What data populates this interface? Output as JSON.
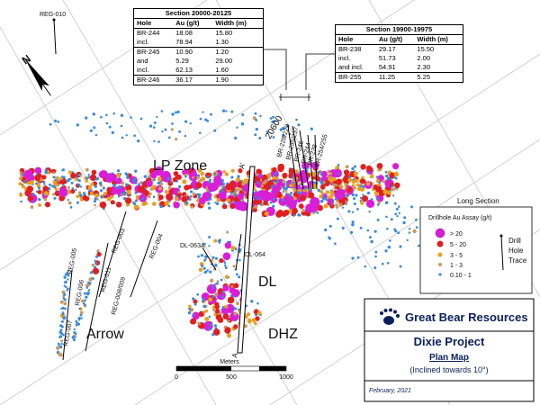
{
  "tables": [
    {
      "title": "Section 20000-20125",
      "columns": [
        "Hole",
        "Au (g/t)",
        "Width (m)"
      ],
      "rows": [
        [
          "BR-244",
          "18.08",
          "15.80"
        ],
        [
          "incl.",
          "78.94",
          "1.30"
        ],
        [
          "BR-245",
          "10.90",
          "1.20"
        ],
        [
          "and",
          "5.29",
          "29.00"
        ],
        [
          "incl.",
          "62.13",
          "1.60"
        ],
        [
          "BR-246",
          "36.17",
          "1.90"
        ]
      ]
    },
    {
      "title": "Section 19900-19975",
      "columns": [
        "Hole",
        "Au (g/t)",
        "Width (m)"
      ],
      "rows": [
        [
          "BR-238",
          "29.17",
          "15.50"
        ],
        [
          "incl.",
          "51.73",
          "2.00"
        ],
        [
          "and incl.",
          "54.91",
          "2.30"
        ],
        [
          "BR-255",
          "11.25",
          "5.25"
        ]
      ]
    }
  ],
  "map_labels": [
    "REG-010",
    "N",
    "LP Zone",
    "Long Section",
    "20600",
    "BR-228/229",
    "BR-235/237",
    "BR-246",
    "BR-244",
    "BR-238",
    "BR-254/255",
    "A'",
    "A",
    "REG-003",
    "REG-004",
    "DL-063A",
    "DL-064",
    "REG-011",
    "REG-008/009",
    "REG-005",
    "REG-006",
    "REG-007",
    "Arrow",
    "DL",
    "DHZ"
  ],
  "legend": {
    "title": "Drillhole Au Assay (g/t)",
    "items": [
      "> 20",
      "5 - 20",
      "3 - 5",
      "1 - 3",
      "0.10 - 1"
    ],
    "trace_label": [
      "Drill",
      "Hole",
      "Trace"
    ]
  },
  "title_block": {
    "company": "Great Bear Resources",
    "project": "Dixie Project",
    "map_type": "Plan Map",
    "note": "(Inclined towards 10°)",
    "date": "February, 2021"
  },
  "scale_bar": {
    "title": "Meters",
    "ticks": [
      0,
      500,
      1000
    ]
  }
}
